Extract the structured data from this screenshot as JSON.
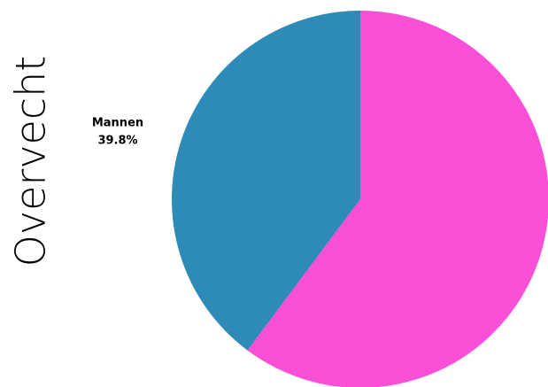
{
  "chart_data": {
    "type": "pie",
    "title": "Overvecht",
    "categories": [
      "Mannen",
      null
    ],
    "values": [
      39.8,
      60.2
    ],
    "value_labels": [
      "39.8%",
      null
    ],
    "colors": [
      "#2e8bb8",
      "#fa4fd6"
    ]
  }
}
